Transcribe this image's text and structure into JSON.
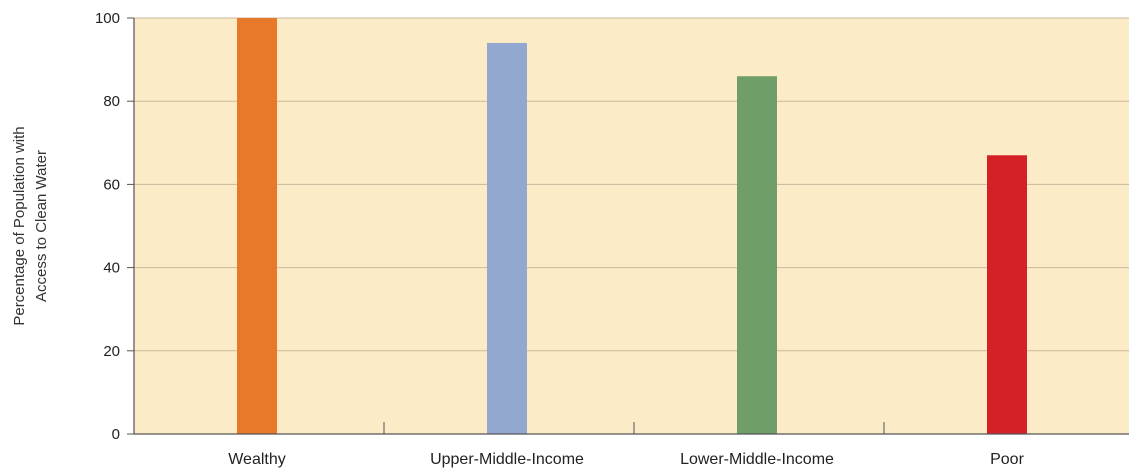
{
  "chart_data": {
    "type": "bar",
    "categories": [
      "Wealthy",
      "Upper-Middle-Income",
      "Lower-Middle-Income",
      "Poor"
    ],
    "values": [
      100,
      94,
      86,
      67
    ],
    "bar_colors": [
      "#e8792b",
      "#93a8d1",
      "#6f9e68",
      "#d42027"
    ],
    "ylabel_lines": [
      "Percentage of Population with",
      "Access to Clean Water"
    ],
    "ylim": [
      0,
      100
    ],
    "yticks": [
      0,
      20,
      40,
      60,
      80,
      100
    ],
    "grid": true,
    "colors": {
      "plot_background": "#fcebc7",
      "gridline": "#c9b99c",
      "axis": "#555555"
    }
  }
}
